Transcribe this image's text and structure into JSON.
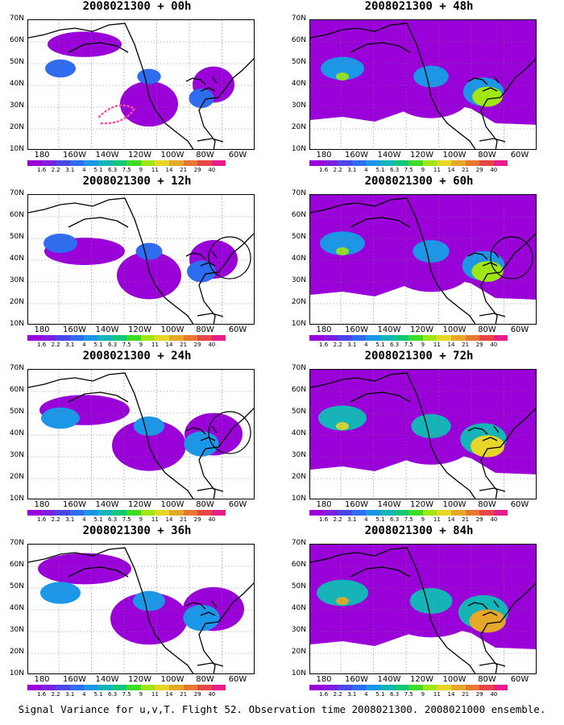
{
  "caption": "Signal Variance for u,v,T. Flight 52. Observation time 2008021300. 2008021000 ensemble.",
  "y_ticks": [
    "70N",
    "60N",
    "50N",
    "40N",
    "30N",
    "20N",
    "10N"
  ],
  "x_ticks": [
    "180",
    "160W",
    "140W",
    "120W",
    "100W",
    "80W",
    "60W"
  ],
  "colorbar": {
    "colors": [
      "#9a00d8",
      "#7d1ee0",
      "#4a46e8",
      "#2e6cf0",
      "#1c96e6",
      "#14b4b8",
      "#10c878",
      "#3cdc28",
      "#a0e614",
      "#e6d628",
      "#e6a828",
      "#e67832",
      "#e64646",
      "#e61e8c"
    ],
    "labels": [
      "1.6",
      "2.2",
      "3.1",
      "4",
      "5.1",
      "6.3",
      "7.5",
      "9",
      "11",
      "14",
      "21",
      "29",
      "40"
    ]
  },
  "panels": [
    {
      "id": "p00",
      "title": "2008021300 + 00h",
      "level": 0.15,
      "circle": false
    },
    {
      "id": "p48",
      "title": "2008021300 + 48h",
      "level": 0.55,
      "circle": false
    },
    {
      "id": "p12",
      "title": "2008021300 + 12h",
      "level": 0.25,
      "circle": true
    },
    {
      "id": "p60",
      "title": "2008021300 + 60h",
      "level": 0.6,
      "circle": true
    },
    {
      "id": "p24",
      "title": "2008021300 + 24h",
      "level": 0.4,
      "circle": true
    },
    {
      "id": "p72",
      "title": "2008021300 + 72h",
      "level": 0.7,
      "circle": false
    },
    {
      "id": "p36",
      "title": "2008021300 + 36h",
      "level": 0.45,
      "circle": false
    },
    {
      "id": "p84",
      "title": "2008021300 + 84h",
      "level": 0.8,
      "circle": false
    }
  ]
}
